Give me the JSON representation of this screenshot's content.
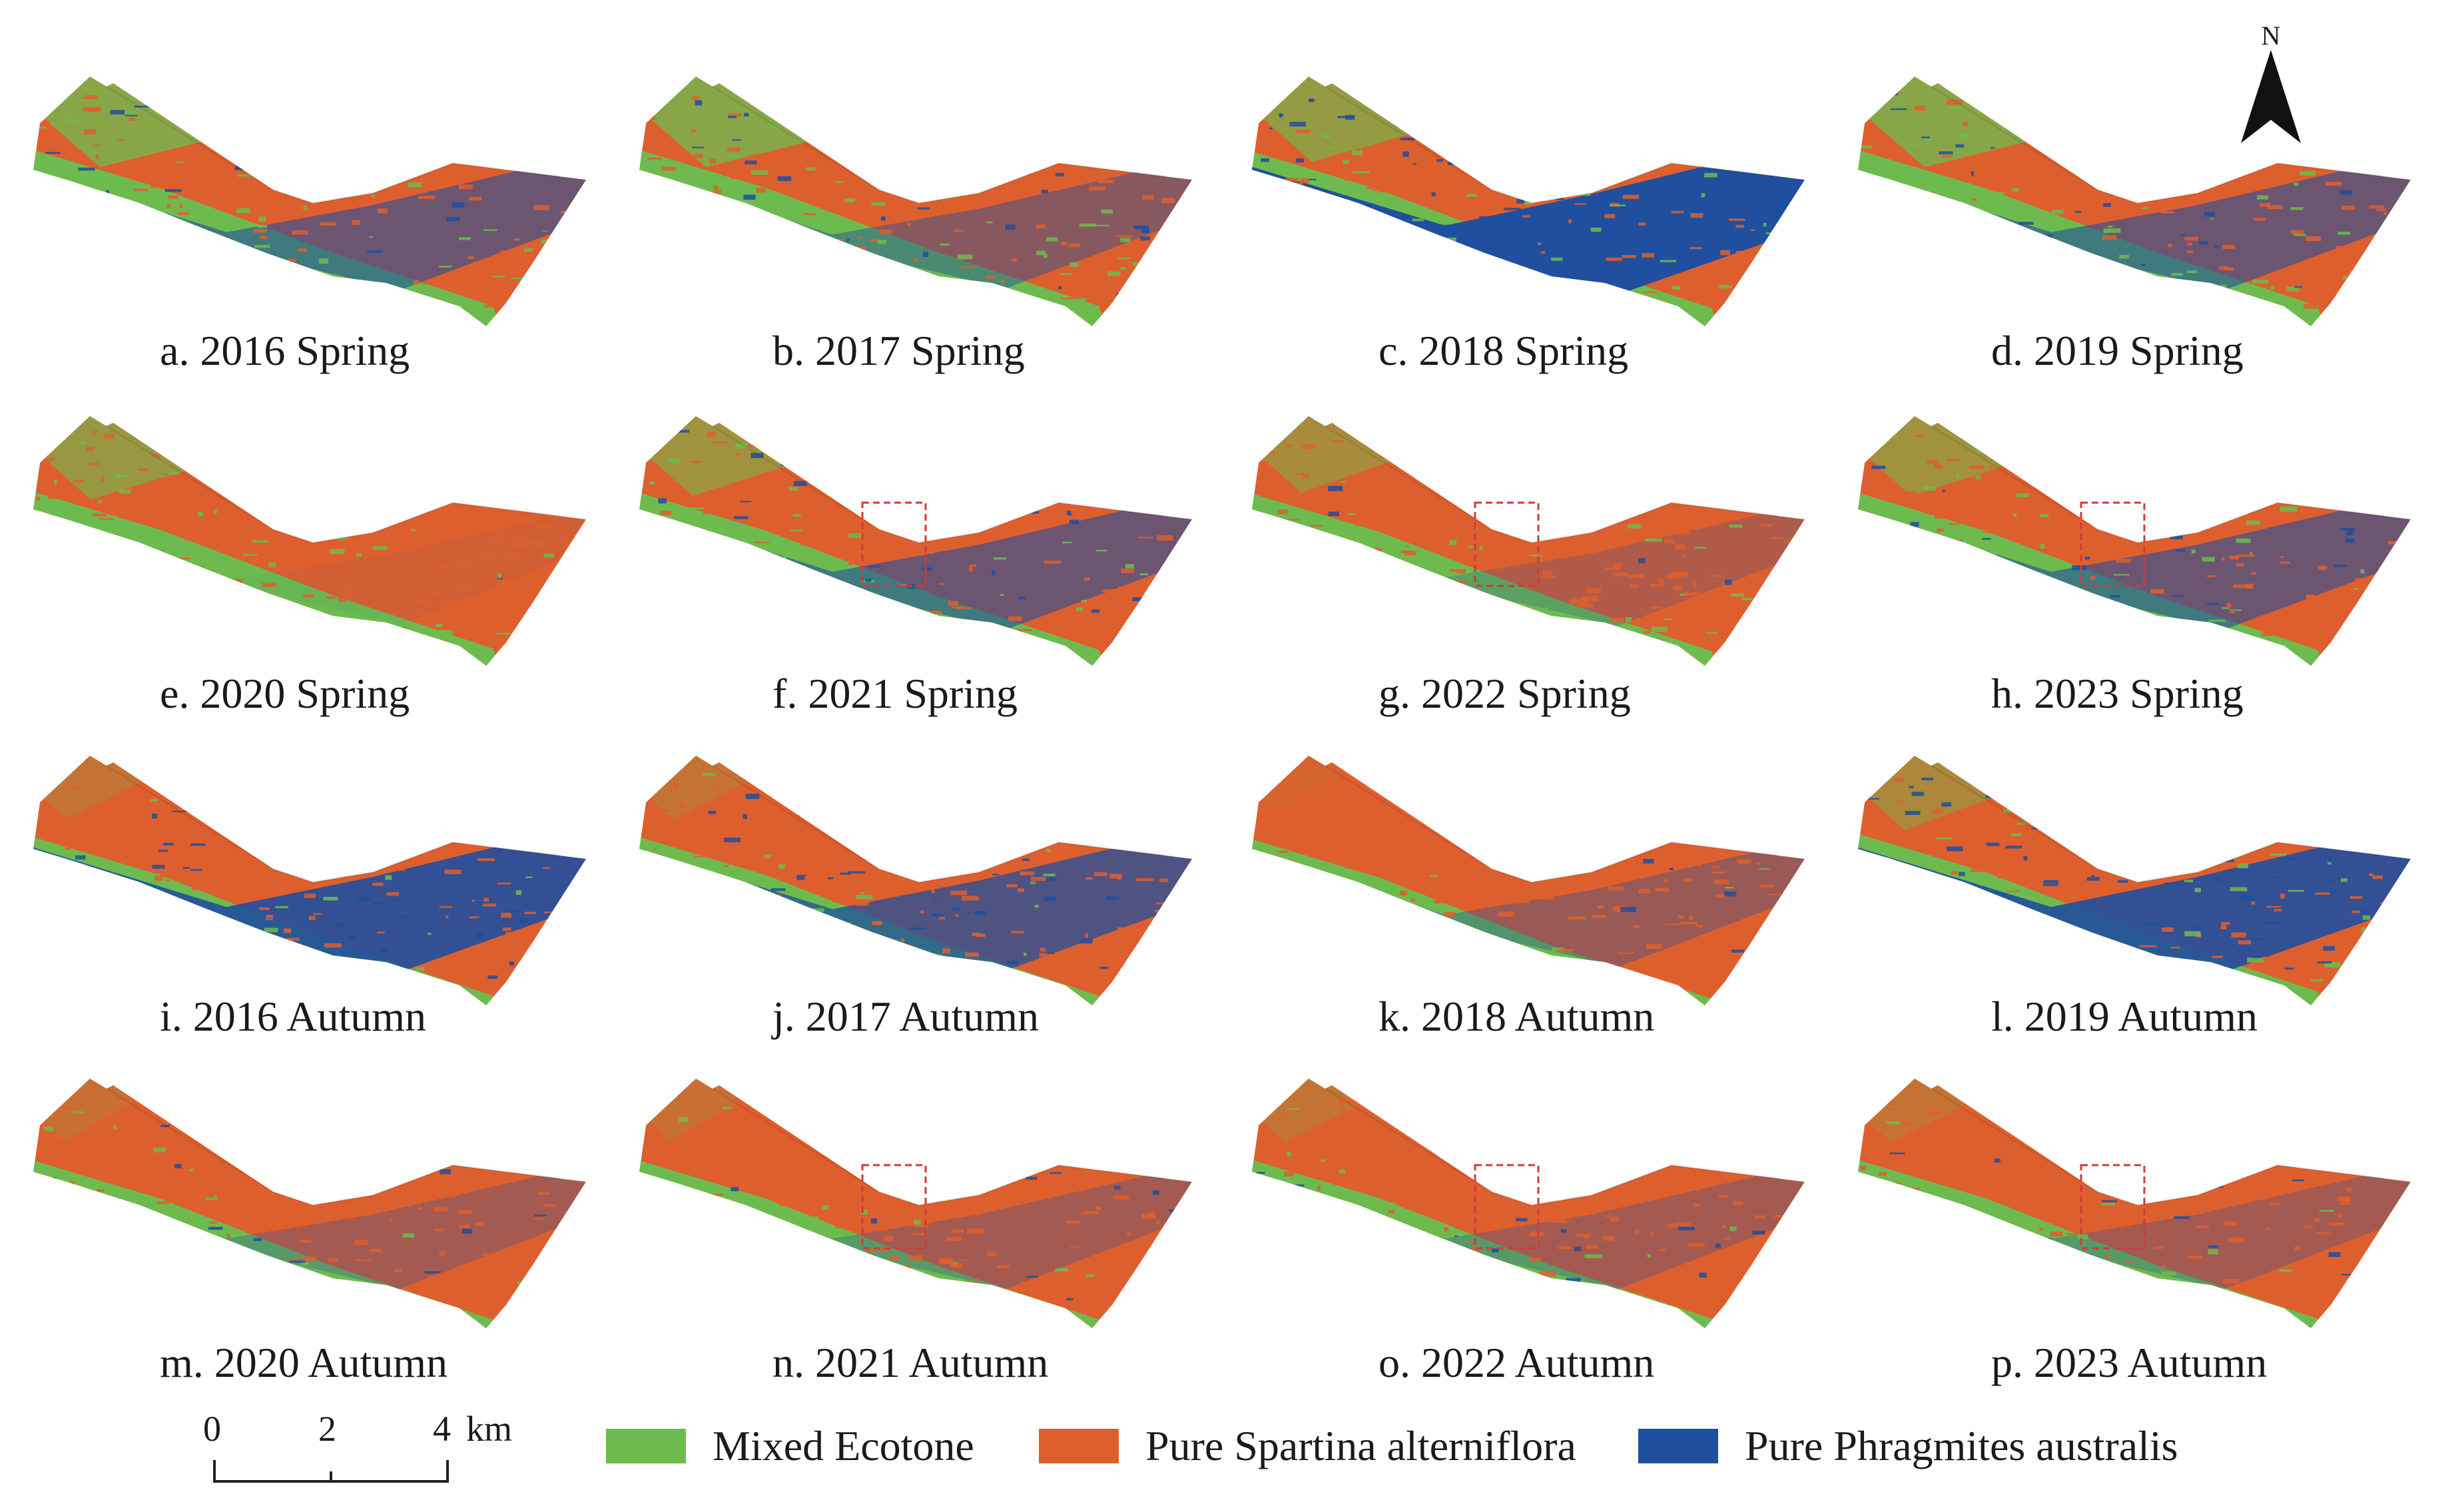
{
  "colors": {
    "mixed": "#6dbb4f",
    "spartina": "#de5f2e",
    "phragmites": "#1f4f9e",
    "highlight_box": "#d03a3a"
  },
  "panels": [
    {
      "caption": "a. 2016 Spring",
      "mix": [
        0.45,
        0.35,
        0.2
      ],
      "box": false
    },
    {
      "caption": "b. 2017 Spring",
      "mix": [
        0.5,
        0.35,
        0.15
      ],
      "box": false
    },
    {
      "caption": "c. 2018 Spring",
      "mix": [
        0.35,
        0.3,
        0.35
      ],
      "box": false
    },
    {
      "caption": "d. 2019 Spring",
      "mix": [
        0.45,
        0.35,
        0.2
      ],
      "box": false
    },
    {
      "caption": "e. 2020 Spring",
      "mix": [
        0.7,
        0.28,
        0.02
      ],
      "box": false
    },
    {
      "caption": "f. 2021 Spring",
      "mix": [
        0.55,
        0.25,
        0.2
      ],
      "box": true
    },
    {
      "caption": "g. 2022 Spring",
      "mix": [
        0.7,
        0.22,
        0.08
      ],
      "box": true
    },
    {
      "caption": "h. 2023 Spring",
      "mix": [
        0.55,
        0.25,
        0.2
      ],
      "box": true
    },
    {
      "caption": "i. 2016 Autumn",
      "mix": [
        0.6,
        0.1,
        0.3
      ],
      "box": false
    },
    {
      "caption": "j. 2017 Autumn",
      "mix": [
        0.65,
        0.1,
        0.25
      ],
      "box": false
    },
    {
      "caption": "k. 2018 Autumn",
      "mix": [
        0.85,
        0.03,
        0.12
      ],
      "box": false
    },
    {
      "caption": "l. 2019 Autumn",
      "mix": [
        0.5,
        0.2,
        0.3
      ],
      "box": false
    },
    {
      "caption": "m. 2020 Autumn",
      "mix": [
        0.82,
        0.08,
        0.1
      ],
      "box": false
    },
    {
      "caption": "n. 2021 Autumn",
      "mix": [
        0.82,
        0.08,
        0.1
      ],
      "box": true
    },
    {
      "caption": "o. 2022 Autumn",
      "mix": [
        0.8,
        0.1,
        0.1
      ],
      "box": true
    },
    {
      "caption": "p. 2023 Autumn",
      "mix": [
        0.8,
        0.1,
        0.1
      ],
      "box": true
    }
  ],
  "north_arrow": {
    "label": "N"
  },
  "scale_bar": {
    "ticks": [
      "0",
      "2",
      "4"
    ],
    "unit": "km"
  },
  "legend": [
    {
      "label": "Mixed Ecotone",
      "color_key": "mixed"
    },
    {
      "label": "Pure Spartina alterniflora",
      "color_key": "spartina"
    },
    {
      "label": "Pure Phragmites australis",
      "color_key": "phragmites"
    }
  ]
}
